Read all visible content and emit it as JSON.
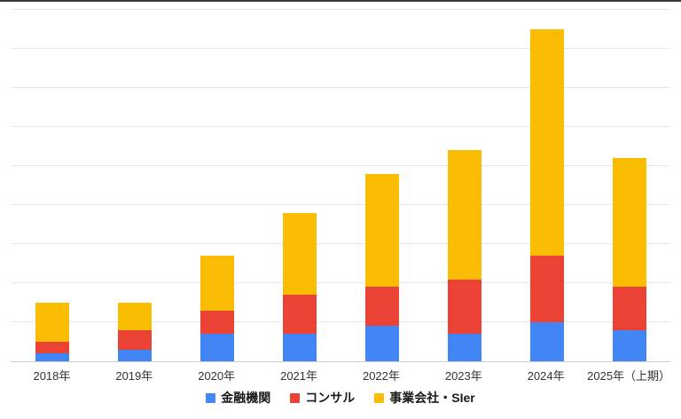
{
  "chart_data": {
    "type": "bar",
    "stacked": true,
    "title": "",
    "xlabel": "",
    "ylabel": "",
    "categories": [
      "2018年",
      "2019年",
      "2020年",
      "2021年",
      "2022年",
      "2023年",
      "2024年",
      "2025年（上期）"
    ],
    "series": [
      {
        "name": "金融機関",
        "color": "#4285F4",
        "values": [
          2,
          3,
          7,
          7,
          9,
          7,
          10,
          8
        ]
      },
      {
        "name": "コンサル",
        "color": "#EA4335",
        "values": [
          3,
          5,
          6,
          10,
          10,
          14,
          17,
          11
        ]
      },
      {
        "name": "事業会社・SIer",
        "color": "#FBBC04",
        "values": [
          10,
          7,
          14,
          21,
          29,
          33,
          58,
          33
        ]
      }
    ],
    "totals": [
      15,
      15,
      27,
      38,
      48,
      54,
      85,
      52
    ],
    "ylim": [
      0,
      90
    ],
    "grid_interval": 10,
    "grid": true,
    "y_axis_labels_visible": false,
    "legend_position": "bottom",
    "colors": {
      "gridline": "#e8e8e8",
      "axis_line": "#cfcfcf",
      "background": "#ffffff"
    }
  }
}
